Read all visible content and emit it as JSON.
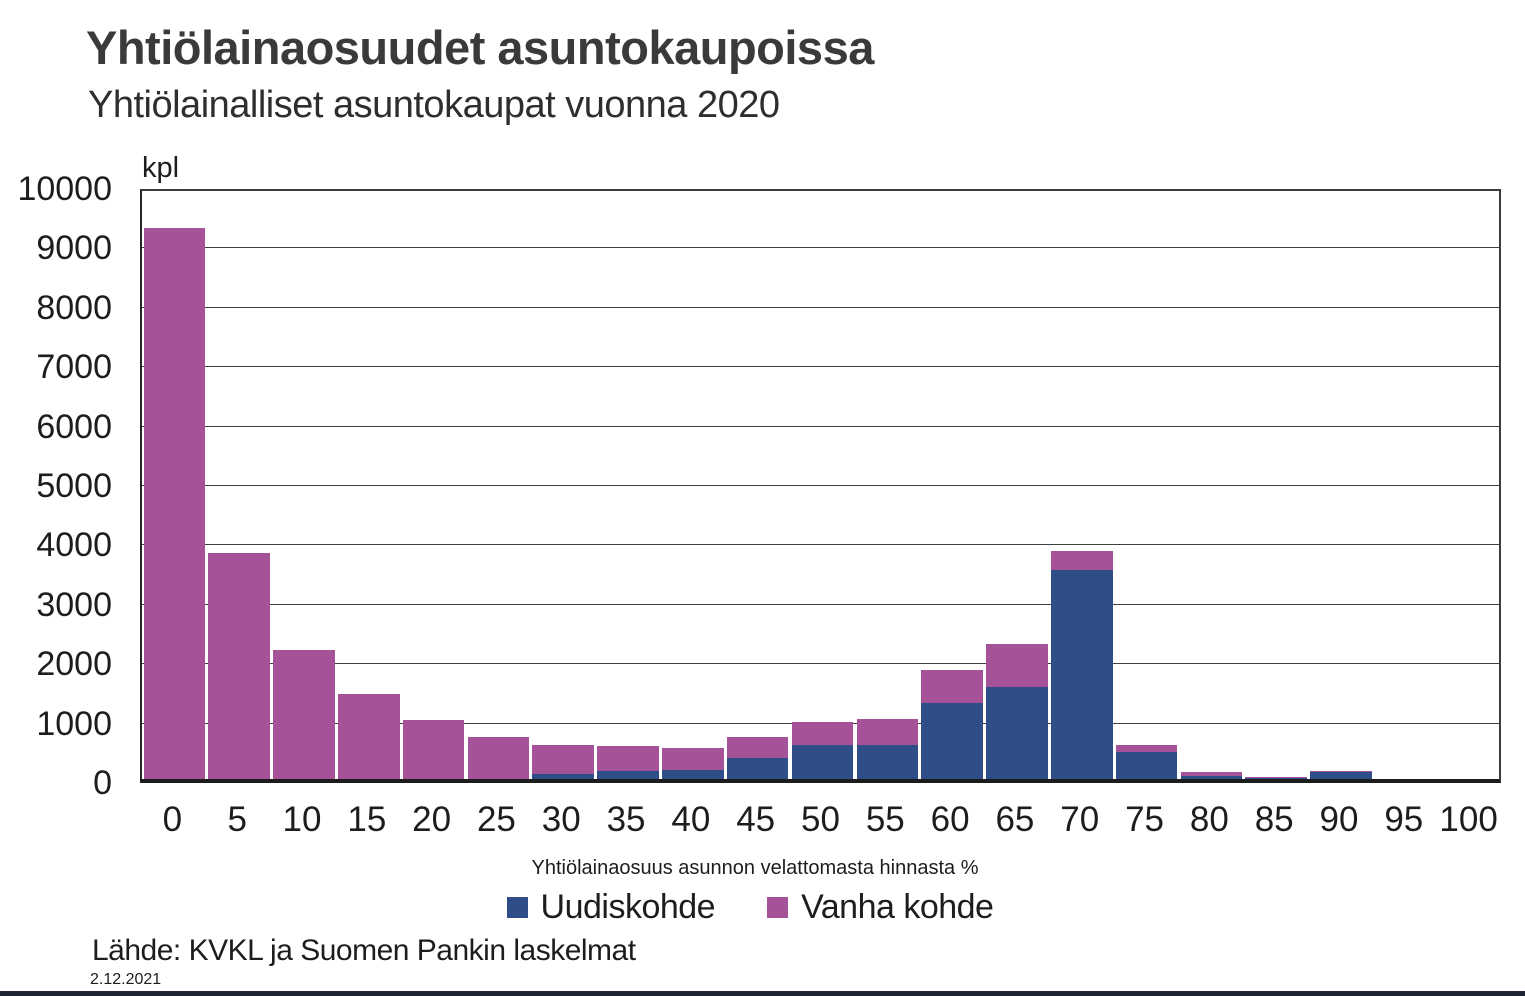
{
  "page": {
    "title": "Yhtiölainaosuudet asuntokaupoissa",
    "subtitle": "Yhtiölainalliset asuntokaupat vuonna 2020",
    "source": "Lähde: KVKL ja Suomen Pankin laskelmat",
    "date": "2.12.2021"
  },
  "chart_data": {
    "type": "bar",
    "stacked": true,
    "title": "Yhtiölainaosuudet asuntokaupoissa",
    "subtitle": "Yhtiölainalliset asuntokaupat vuonna 2020",
    "unit_label": "kpl",
    "xlabel": "Yhtiölainaosuus asunnon velattomasta hinnasta %",
    "ylabel": "kpl",
    "categories": [
      0,
      5,
      10,
      15,
      20,
      25,
      30,
      35,
      40,
      45,
      50,
      55,
      60,
      65,
      70,
      75,
      80,
      85,
      90,
      95,
      100
    ],
    "series": [
      {
        "name": "Uudiskohde",
        "color": "#2F4E87",
        "stack_position": "bottom",
        "values": [
          0,
          0,
          0,
          0,
          0,
          0,
          90,
          140,
          160,
          360,
          570,
          570,
          1280,
          1545,
          3520,
          450,
          55,
          10,
          110,
          0,
          0
        ]
      },
      {
        "name": "Vanha kohde",
        "color": "#A65298",
        "stack_position": "top",
        "values": [
          9270,
          3800,
          2180,
          1430,
          1000,
          705,
          490,
          415,
          355,
          345,
          395,
          445,
          560,
          735,
          325,
          130,
          65,
          25,
          20,
          0,
          0
        ]
      }
    ],
    "ylim": [
      0,
      10000
    ],
    "ytick_step": 1000,
    "grid": true,
    "legend_position": "bottom"
  }
}
